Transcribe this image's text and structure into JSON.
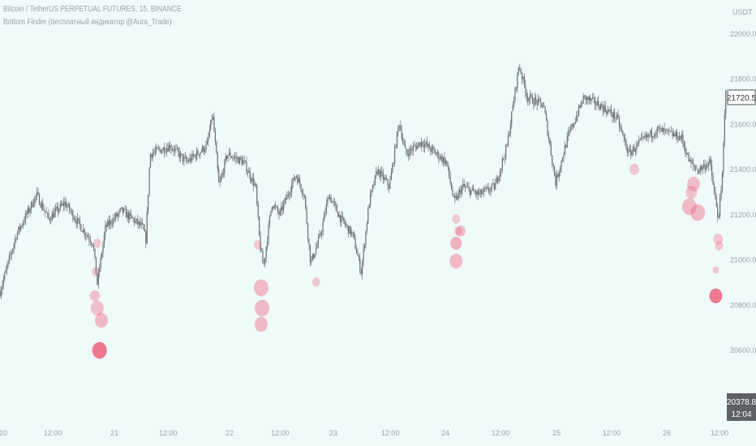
{
  "header": {
    "symbol_title": "Bitcoin / TetherUS PERPETUAL FUTURES, 15, BINANCE",
    "indicator_title": "Bottom Finder (бесплатный индикатор @Aura_Trade)"
  },
  "colors": {
    "background": "#eefbf9",
    "candle": "#6b6f75",
    "bubble": "#f06a86",
    "axis_text": "#9aa3a8",
    "label_bg": "#5d6166"
  },
  "chart_data": {
    "type": "candlestick",
    "y_unit": "USDT",
    "ylim": [
      20300,
      22150
    ],
    "y_ticks": [
      "22000.0",
      "21800.0",
      "21600.0",
      "21400.0",
      "21200.0",
      "21000.0",
      "20800.0",
      "20600.0"
    ],
    "y_tick_values": [
      22000,
      21800,
      21600,
      21400,
      21200,
      21000,
      20800,
      20600
    ],
    "x_ticks": [
      {
        "h": 0,
        "label": "20"
      },
      {
        "h": 10.7,
        "label": "12:00"
      },
      {
        "h": 24,
        "label": "21"
      },
      {
        "h": 35.6,
        "label": "12:00"
      },
      {
        "h": 48.9,
        "label": "22"
      },
      {
        "h": 59.8,
        "label": "12:00"
      },
      {
        "h": 71.3,
        "label": "23"
      },
      {
        "h": 83.6,
        "label": "12:00"
      },
      {
        "h": 95.5,
        "label": "24"
      },
      {
        "h": 107.4,
        "label": "12:00"
      },
      {
        "h": 119.5,
        "label": "25"
      },
      {
        "h": 131.4,
        "label": "12:00"
      },
      {
        "h": 143.3,
        "label": "26"
      },
      {
        "h": 154.7,
        "label": "12:00"
      }
    ],
    "price_path_hours": [
      -0.7,
      2.8,
      7.2,
      9.8,
      13.3,
      16.8,
      19.4,
      20.3,
      22.1,
      25.6,
      30.0,
      30.8,
      31.7,
      36.1,
      39.6,
      44.0,
      45.2,
      46.6,
      48.4,
      51.9,
      54.5,
      55.4,
      56.2,
      58.0,
      59.7,
      63.2,
      65.0,
      66.4,
      68.5,
      70.3,
      72.9,
      75.5,
      77.3,
      79.0,
      80.8,
      83.4,
      85.5,
      86.9,
      90.4,
      95.7,
      97.4,
      99.2,
      102.7,
      106.2,
      108.8,
      111.4,
      113.2,
      116.7,
      119.3,
      121.9,
      125.4,
      128.9,
      132.5,
      135.1,
      137.7,
      141.2,
      146.5,
      148.2,
      150.0,
      152.6,
      154.4,
      155.2,
      156.1
    ],
    "price_path_values": [
      20859,
      21110,
      21289,
      21182,
      21253,
      21146,
      21074,
      20895,
      21146,
      21218,
      21146,
      21092,
      21469,
      21505,
      21433,
      21505,
      21648,
      21325,
      21469,
      21433,
      21325,
      21074,
      20966,
      21253,
      21200,
      21379,
      21289,
      20984,
      21110,
      21289,
      21182,
      21110,
      20948,
      21253,
      21397,
      21325,
      21612,
      21469,
      21523,
      21433,
      21253,
      21325,
      21289,
      21325,
      21505,
      21864,
      21720,
      21684,
      21343,
      21541,
      21720,
      21684,
      21630,
      21469,
      21523,
      21577,
      21541,
      21433,
      21397,
      21433,
      21182,
      21325,
      21792
    ],
    "bottom_signals": [
      {
        "h": 20.3,
        "p": 21074,
        "s": 1,
        "o": 0.35
      },
      {
        "h": 20.0,
        "p": 20948,
        "s": 1,
        "o": 0.35
      },
      {
        "h": 19.8,
        "p": 20841,
        "s": 1.2,
        "o": 0.4
      },
      {
        "h": 20.3,
        "p": 20787,
        "s": 1.6,
        "o": 0.4
      },
      {
        "h": 21.2,
        "p": 20733,
        "s": 1.6,
        "o": 0.45
      },
      {
        "h": 20.8,
        "p": 20600,
        "s": 1.8,
        "o": 0.9
      },
      {
        "h": 55.0,
        "p": 21067,
        "s": 1,
        "o": 0.35
      },
      {
        "h": 55.7,
        "p": 20877,
        "s": 1.8,
        "o": 0.45
      },
      {
        "h": 55.9,
        "p": 20787,
        "s": 1.8,
        "o": 0.45
      },
      {
        "h": 55.7,
        "p": 20715,
        "s": 1.6,
        "o": 0.45
      },
      {
        "h": 67.6,
        "p": 20902,
        "s": 1,
        "o": 0.35
      },
      {
        "h": 97.8,
        "p": 21182,
        "s": 1,
        "o": 0.35
      },
      {
        "h": 98.3,
        "p": 21128,
        "s": 1,
        "o": 0.35
      },
      {
        "h": 98.8,
        "p": 21128,
        "s": 1.2,
        "o": 0.4
      },
      {
        "h": 97.8,
        "p": 21074,
        "s": 1.4,
        "o": 0.5
      },
      {
        "h": 97.8,
        "p": 20995,
        "s": 1.6,
        "o": 0.45
      },
      {
        "h": 136.3,
        "p": 21401,
        "s": 1.2,
        "o": 0.35
      },
      {
        "h": 149.1,
        "p": 21336,
        "s": 1.6,
        "o": 0.4
      },
      {
        "h": 148.6,
        "p": 21300,
        "s": 1.4,
        "o": 0.4
      },
      {
        "h": 148.2,
        "p": 21236,
        "s": 1.8,
        "o": 0.45
      },
      {
        "h": 150.0,
        "p": 21210,
        "s": 1.8,
        "o": 0.45
      },
      {
        "h": 154.4,
        "p": 21092,
        "s": 1.2,
        "o": 0.35
      },
      {
        "h": 154.6,
        "p": 21063,
        "s": 1,
        "o": 0.35
      },
      {
        "h": 153.9,
        "p": 20955,
        "s": 0.8,
        "o": 0.35
      },
      {
        "h": 153.9,
        "p": 20841,
        "s": 1.6,
        "o": 0.9
      }
    ],
    "last_price": "21720.5",
    "crosshair_price": "20378.8",
    "crosshair_time": "12:04"
  }
}
